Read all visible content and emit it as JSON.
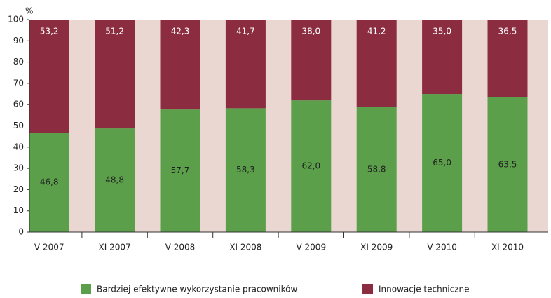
{
  "chart_data": {
    "type": "stacked_bar",
    "y_label": "%",
    "categories": [
      "V 2007",
      "XI 2007",
      "V 2008",
      "XI 2008",
      "V 2009",
      "XI 2009",
      "V 2010",
      "XI 2010"
    ],
    "series": [
      {
        "name": "Bardziej efektywne wykorzystanie pracowników",
        "color": "#5b9f4b",
        "values": [
          46.8,
          48.8,
          57.7,
          58.3,
          62.0,
          58.8,
          65.0,
          63.5
        ],
        "value_labels": [
          "46,8",
          "48,8",
          "57,7",
          "58,3",
          "62,0",
          "58,8",
          "65,0",
          "63,5"
        ]
      },
      {
        "name": "Innowacje techniczne",
        "color": "#8c2c40",
        "values": [
          53.2,
          51.2,
          42.3,
          41.7,
          38.0,
          41.2,
          35.0,
          36.5
        ],
        "value_labels": [
          "53,2",
          "51,2",
          "42,3",
          "41,7",
          "38,0",
          "41,2",
          "35,0",
          "36,5"
        ]
      }
    ],
    "ylim": [
      0,
      100
    ],
    "yticks": [
      0,
      10,
      20,
      30,
      40,
      50,
      60,
      70,
      80,
      90,
      100
    ]
  }
}
